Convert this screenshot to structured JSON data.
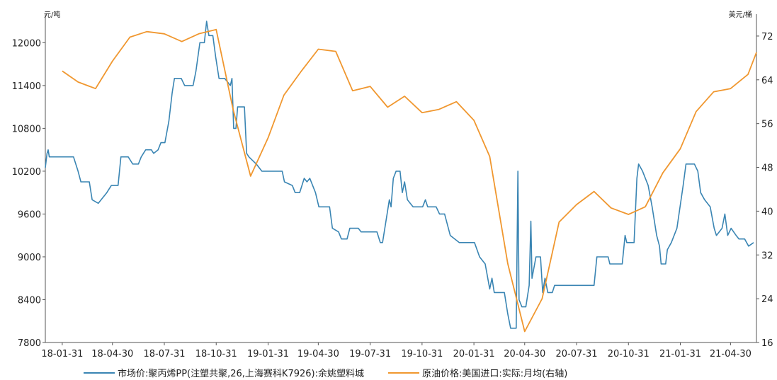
{
  "chart_data": {
    "type": "line",
    "title": "",
    "xlabel": "",
    "ylabel_left": "元/吨",
    "ylabel_right": "美元/桶",
    "x_tick_labels": [
      "18-01-31",
      "18-04-30",
      "18-07-31",
      "18-10-31",
      "19-01-31",
      "19-04-30",
      "19-07-31",
      "19-10-31",
      "20-01-31",
      "20-04-30",
      "20-07-31",
      "20-10-31",
      "21-01-31",
      "21-04-30"
    ],
    "x_range": [
      "2018-01-01",
      "2021-06-15"
    ],
    "ylim_left": [
      7800,
      12400
    ],
    "yticks_left": [
      7800,
      8400,
      9000,
      9600,
      10200,
      10800,
      11400,
      12000
    ],
    "ylim_right": [
      16,
      76
    ],
    "yticks_right": [
      16,
      24,
      32,
      40,
      48,
      56,
      64,
      72
    ],
    "grid": false,
    "legend_position": "bottom",
    "series": [
      {
        "name": "市场价:聚丙烯PP(注塑共聚,26,上海赛科K7926):余姚塑料城",
        "axis": "left",
        "color": "#3a85b3",
        "points": [
          [
            "2018-01-01",
            10250
          ],
          [
            "2018-01-04",
            10450
          ],
          [
            "2018-01-06",
            10500
          ],
          [
            "2018-01-08",
            10400
          ],
          [
            "2018-02-01",
            10400
          ],
          [
            "2018-02-20",
            10400
          ],
          [
            "2018-02-28",
            10200
          ],
          [
            "2018-03-05",
            10050
          ],
          [
            "2018-03-20",
            10050
          ],
          [
            "2018-03-25",
            9800
          ],
          [
            "2018-04-05",
            9750
          ],
          [
            "2018-04-10",
            9800
          ],
          [
            "2018-04-20",
            9900
          ],
          [
            "2018-04-28",
            10000
          ],
          [
            "2018-05-10",
            10000
          ],
          [
            "2018-05-15",
            10400
          ],
          [
            "2018-05-28",
            10400
          ],
          [
            "2018-06-05",
            10300
          ],
          [
            "2018-06-15",
            10300
          ],
          [
            "2018-06-20",
            10400
          ],
          [
            "2018-06-28",
            10500
          ],
          [
            "2018-07-08",
            10500
          ],
          [
            "2018-07-12",
            10450
          ],
          [
            "2018-07-20",
            10500
          ],
          [
            "2018-07-25",
            10600
          ],
          [
            "2018-08-01",
            10600
          ],
          [
            "2018-08-08",
            10900
          ],
          [
            "2018-08-14",
            11300
          ],
          [
            "2018-08-18",
            11500
          ],
          [
            "2018-08-30",
            11500
          ],
          [
            "2018-09-05",
            11400
          ],
          [
            "2018-09-20",
            11400
          ],
          [
            "2018-09-25",
            11600
          ],
          [
            "2018-10-02",
            12000
          ],
          [
            "2018-10-10",
            12000
          ],
          [
            "2018-10-14",
            12300
          ],
          [
            "2018-10-18",
            12100
          ],
          [
            "2018-10-25",
            12100
          ],
          [
            "2018-10-30",
            11800
          ],
          [
            "2018-11-05",
            11500
          ],
          [
            "2018-11-15",
            11500
          ],
          [
            "2018-11-20",
            11450
          ],
          [
            "2018-11-25",
            11400
          ],
          [
            "2018-11-28",
            11500
          ],
          [
            "2018-12-01",
            10800
          ],
          [
            "2018-12-05",
            10800
          ],
          [
            "2018-12-08",
            11100
          ],
          [
            "2018-12-20",
            11100
          ],
          [
            "2018-12-24",
            10450
          ],
          [
            "2018-12-28",
            10400
          ],
          [
            "2019-01-10",
            10300
          ],
          [
            "2019-01-20",
            10200
          ],
          [
            "2019-02-10",
            10200
          ],
          [
            "2019-02-25",
            10200
          ],
          [
            "2019-03-01",
            10050
          ],
          [
            "2019-03-15",
            10000
          ],
          [
            "2019-03-20",
            9900
          ],
          [
            "2019-03-28",
            9900
          ],
          [
            "2019-04-05",
            10100
          ],
          [
            "2019-04-10",
            10050
          ],
          [
            "2019-04-15",
            10100
          ],
          [
            "2019-04-25",
            9900
          ],
          [
            "2019-05-01",
            9700
          ],
          [
            "2019-05-20",
            9700
          ],
          [
            "2019-05-25",
            9400
          ],
          [
            "2019-06-05",
            9350
          ],
          [
            "2019-06-10",
            9250
          ],
          [
            "2019-06-20",
            9250
          ],
          [
            "2019-06-25",
            9400
          ],
          [
            "2019-07-10",
            9400
          ],
          [
            "2019-07-15",
            9350
          ],
          [
            "2019-08-05",
            9350
          ],
          [
            "2019-08-12",
            9350
          ],
          [
            "2019-08-18",
            9200
          ],
          [
            "2019-08-22",
            9200
          ],
          [
            "2019-08-26",
            9400
          ],
          [
            "2019-09-03",
            9800
          ],
          [
            "2019-09-06",
            9700
          ],
          [
            "2019-09-10",
            10100
          ],
          [
            "2019-09-15",
            10200
          ],
          [
            "2019-09-22",
            10200
          ],
          [
            "2019-09-26",
            9900
          ],
          [
            "2019-09-30",
            10050
          ],
          [
            "2019-10-05",
            9800
          ],
          [
            "2019-10-15",
            9700
          ],
          [
            "2019-11-01",
            9700
          ],
          [
            "2019-11-06",
            9800
          ],
          [
            "2019-11-10",
            9700
          ],
          [
            "2019-11-25",
            9700
          ],
          [
            "2019-12-01",
            9600
          ],
          [
            "2019-12-10",
            9600
          ],
          [
            "2019-12-20",
            9300
          ],
          [
            "2020-01-05",
            9200
          ],
          [
            "2020-02-01",
            9200
          ],
          [
            "2020-02-10",
            9000
          ],
          [
            "2020-02-20",
            8900
          ],
          [
            "2020-02-28",
            8550
          ],
          [
            "2020-03-03",
            8700
          ],
          [
            "2020-03-07",
            8500
          ],
          [
            "2020-03-25",
            8500
          ],
          [
            "2020-03-31",
            8200
          ],
          [
            "2020-04-05",
            8000
          ],
          [
            "2020-04-15",
            8000
          ],
          [
            "2020-04-18",
            10200
          ],
          [
            "2020-04-20",
            8400
          ],
          [
            "2020-04-25",
            8300
          ],
          [
            "2020-05-02",
            8300
          ],
          [
            "2020-05-08",
            8600
          ],
          [
            "2020-05-11",
            9500
          ],
          [
            "2020-05-13",
            8700
          ],
          [
            "2020-05-20",
            9000
          ],
          [
            "2020-05-28",
            9000
          ],
          [
            "2020-06-01",
            8500
          ],
          [
            "2020-06-05",
            8700
          ],
          [
            "2020-06-10",
            8500
          ],
          [
            "2020-06-18",
            8500
          ],
          [
            "2020-06-22",
            8600
          ],
          [
            "2020-07-31",
            8600
          ],
          [
            "2020-08-31",
            8600
          ],
          [
            "2020-09-05",
            9000
          ],
          [
            "2020-09-25",
            9000
          ],
          [
            "2020-09-28",
            8900
          ],
          [
            "2020-10-20",
            8900
          ],
          [
            "2020-10-25",
            9300
          ],
          [
            "2020-10-28",
            9200
          ],
          [
            "2020-11-10",
            9200
          ],
          [
            "2020-11-15",
            10100
          ],
          [
            "2020-11-18",
            10300
          ],
          [
            "2020-11-25",
            10200
          ],
          [
            "2020-12-05",
            10000
          ],
          [
            "2020-12-12",
            9700
          ],
          [
            "2020-12-20",
            9300
          ],
          [
            "2020-12-25",
            9150
          ],
          [
            "2020-12-28",
            8900
          ],
          [
            "2021-01-05",
            8900
          ],
          [
            "2021-01-08",
            9100
          ],
          [
            "2021-01-15",
            9200
          ],
          [
            "2021-01-25",
            9400
          ],
          [
            "2021-02-05",
            10000
          ],
          [
            "2021-02-10",
            10300
          ],
          [
            "2021-02-25",
            10300
          ],
          [
            "2021-03-03",
            10200
          ],
          [
            "2021-03-08",
            9900
          ],
          [
            "2021-03-15",
            9800
          ],
          [
            "2021-03-25",
            9700
          ],
          [
            "2021-04-01",
            9400
          ],
          [
            "2021-04-05",
            9300
          ],
          [
            "2021-04-15",
            9400
          ],
          [
            "2021-04-20",
            9600
          ],
          [
            "2021-04-25",
            9300
          ],
          [
            "2021-05-01",
            9400
          ],
          [
            "2021-05-10",
            9300
          ],
          [
            "2021-05-15",
            9250
          ],
          [
            "2021-05-25",
            9250
          ],
          [
            "2021-06-01",
            9150
          ],
          [
            "2021-06-10",
            9200
          ]
        ]
      },
      {
        "name": "原油价格:美国进口:实际:月均(右轴)",
        "axis": "right",
        "color": "#f0972f",
        "points": [
          [
            "2018-01-31",
            65.6
          ],
          [
            "2018-02-28",
            63.6
          ],
          [
            "2018-03-31",
            62.4
          ],
          [
            "2018-04-30",
            67.4
          ],
          [
            "2018-05-31",
            71.8
          ],
          [
            "2018-06-30",
            72.8
          ],
          [
            "2018-07-31",
            72.4
          ],
          [
            "2018-08-31",
            71.0
          ],
          [
            "2018-09-30",
            72.4
          ],
          [
            "2018-10-31",
            73.2
          ],
          [
            "2018-11-30",
            58.6
          ],
          [
            "2018-12-31",
            46.4
          ],
          [
            "2019-01-31",
            53.4
          ],
          [
            "2019-02-28",
            61.2
          ],
          [
            "2019-03-31",
            65.6
          ],
          [
            "2019-04-30",
            69.6
          ],
          [
            "2019-05-31",
            69.2
          ],
          [
            "2019-06-30",
            62.0
          ],
          [
            "2019-07-31",
            62.8
          ],
          [
            "2019-08-31",
            59.0
          ],
          [
            "2019-09-30",
            61.0
          ],
          [
            "2019-10-31",
            58.0
          ],
          [
            "2019-11-30",
            58.6
          ],
          [
            "2019-12-31",
            60.0
          ],
          [
            "2020-01-31",
            56.6
          ],
          [
            "2020-02-28",
            50.0
          ],
          [
            "2020-03-31",
            30.4
          ],
          [
            "2020-04-30",
            18.0
          ],
          [
            "2020-05-31",
            24.0
          ],
          [
            "2020-06-30",
            38.0
          ],
          [
            "2020-07-31",
            41.2
          ],
          [
            "2020-08-31",
            43.6
          ],
          [
            "2020-09-30",
            40.6
          ],
          [
            "2020-10-31",
            39.4
          ],
          [
            "2020-11-30",
            40.8
          ],
          [
            "2020-12-31",
            47.0
          ],
          [
            "2021-01-31",
            51.4
          ],
          [
            "2021-02-28",
            58.2
          ],
          [
            "2021-03-31",
            61.8
          ],
          [
            "2021-04-30",
            62.4
          ],
          [
            "2021-05-31",
            65.0
          ],
          [
            "2021-06-15",
            69.0
          ]
        ]
      }
    ]
  }
}
